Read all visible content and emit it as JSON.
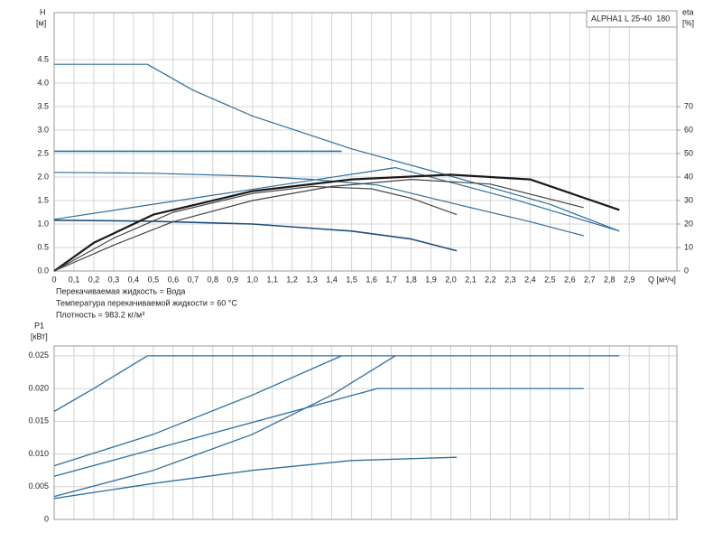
{
  "chart_data": [
    {
      "type": "line",
      "model_label": "ALPHA1 L 25-40  180",
      "y_label": "H",
      "y_unit": "[м]",
      "y2_label": "eta",
      "y2_unit": "[%]",
      "x_label": "Q [м³/ч]",
      "notes": [
        "Перекачиваемая жидкость = Вода",
        "Температура перекачиваемой жидкости = 60 °C",
        "Плотность = 983.2 кг/м³"
      ],
      "xlim": [
        0,
        3.14
      ],
      "xticks": [
        0,
        {
          "value": 0.1,
          "label": "0,1"
        },
        {
          "value": 0.2,
          "label": "0,2"
        },
        {
          "value": 0.3,
          "label": "0,3"
        },
        {
          "value": 0.4,
          "label": "0,4"
        },
        {
          "value": 0.5,
          "label": "0,5"
        },
        {
          "value": 0.6,
          "label": "0,6"
        },
        {
          "value": 0.7,
          "label": "0,7"
        },
        {
          "value": 0.8,
          "label": "0,8"
        },
        {
          "value": 0.9,
          "label": "0,9"
        },
        {
          "value": 1.0,
          "label": "1,0"
        },
        {
          "value": 1.1,
          "label": "1,1"
        },
        {
          "value": 1.2,
          "label": "1,2"
        },
        {
          "value": 1.3,
          "label": "1,3"
        },
        {
          "value": 1.4,
          "label": "1,4"
        },
        {
          "value": 1.5,
          "label": "1,5"
        },
        {
          "value": 1.6,
          "label": "1,6"
        },
        {
          "value": 1.7,
          "label": "1,7"
        },
        {
          "value": 1.8,
          "label": "1,8"
        },
        {
          "value": 1.9,
          "label": "1,9"
        },
        {
          "value": 2.0,
          "label": "2,0"
        },
        {
          "value": 2.1,
          "label": "2,1"
        },
        {
          "value": 2.2,
          "label": "2,2"
        },
        {
          "value": 2.3,
          "label": "2,3"
        },
        {
          "value": 2.4,
          "label": "2,4"
        },
        {
          "value": 2.5,
          "label": "2,5"
        },
        {
          "value": 2.6,
          "label": "2,6"
        },
        {
          "value": 2.7,
          "label": "2,7"
        },
        {
          "value": 2.8,
          "label": "2,8"
        },
        {
          "value": 2.9,
          "label": "2,9"
        }
      ],
      "xtick_labels": true,
      "ylim": [
        0,
        5.5
      ],
      "yticks": [
        {
          "value": 0,
          "label": "0.0"
        },
        0.5,
        {
          "value": 1,
          "label": "1.0"
        },
        1.5,
        {
          "value": 2,
          "label": "2.0"
        },
        2.5,
        {
          "value": 3,
          "label": "3.0"
        },
        3.5,
        {
          "value": 4,
          "label": "4.0"
        },
        4.5
      ],
      "y2lim": [
        0,
        110
      ],
      "y2ticks": [
        0,
        10,
        20,
        30,
        40,
        50,
        60,
        70
      ],
      "grid": true,
      "series": [
        {
          "color": "#2f6e9b",
          "width": 1.2,
          "x": [
            0,
            0.47,
            0.7,
            1.0,
            1.5,
            2.0,
            2.5,
            2.85
          ],
          "values": [
            4.4,
            4.4,
            3.85,
            3.3,
            2.6,
            2.02,
            1.42,
            0.85
          ]
        },
        {
          "color": "#2f6e9b",
          "width": 1.6,
          "x": [
            0,
            1.45
          ],
          "values": [
            2.55,
            2.55
          ]
        },
        {
          "color": "#2f6e9b",
          "width": 1.2,
          "x": [
            0,
            1.72,
            2.3,
            2.85
          ],
          "values": [
            1.1,
            2.2,
            1.55,
            0.85
          ]
        },
        {
          "color": "#2f6e9b",
          "width": 1.2,
          "x": [
            0,
            0.5,
            1.0,
            1.3,
            1.63,
            2.0,
            2.4,
            2.67
          ],
          "values": [
            2.1,
            2.08,
            2.02,
            1.95,
            1.83,
            1.45,
            1.05,
            0.75
          ]
        },
        {
          "color": "#1f4f7a",
          "width": 1.6,
          "x": [
            0,
            0.5,
            1.0,
            1.5,
            1.8,
            2.03
          ],
          "values": [
            1.08,
            1.06,
            1.0,
            0.85,
            0.68,
            0.43
          ]
        },
        {
          "color": "#1a1a1a",
          "width": 2.2,
          "axis": "y2",
          "x": [
            0,
            0.2,
            0.5,
            1.0,
            1.5,
            2.0,
            2.4,
            2.85
          ],
          "values": [
            0,
            12,
            24,
            34,
            39,
            41,
            39,
            26
          ]
        },
        {
          "color": "#444444",
          "width": 1.2,
          "axis": "y2",
          "x": [
            0,
            0.3,
            0.6,
            1.0,
            1.3,
            1.6,
            1.8,
            2.03
          ],
          "values": [
            0,
            14,
            25,
            33,
            36,
            35,
            31,
            24
          ]
        },
        {
          "color": "#444444",
          "width": 1.2,
          "axis": "y2",
          "x": [
            0,
            0.3,
            0.6,
            1.0,
            1.4,
            1.8,
            2.2,
            2.67
          ],
          "values": [
            0,
            11,
            21,
            30,
            36,
            39,
            37,
            27
          ]
        }
      ]
    },
    {
      "type": "line",
      "y_label": "P1",
      "y_unit": "[кВт]",
      "xlim": [
        0,
        3.14
      ],
      "xticks": [
        0,
        0.1,
        0.2,
        0.3,
        0.4,
        0.5,
        0.6,
        0.7,
        0.8,
        0.9,
        1.0,
        1.1,
        1.2,
        1.3,
        1.4,
        1.5,
        1.6,
        1.7,
        1.8,
        1.9,
        2.0,
        2.1,
        2.2,
        2.3,
        2.4,
        2.5,
        2.6,
        2.7,
        2.8,
        2.9,
        3.0,
        3.1
      ],
      "xtick_labels": false,
      "ylim": [
        0,
        0.0265
      ],
      "yticks": [
        0,
        0.005,
        {
          "value": 0.01,
          "label": "0.010"
        },
        0.015,
        {
          "value": 0.02,
          "label": "0.020"
        },
        0.025
      ],
      "grid": true,
      "series": [
        {
          "color": "#2f6e9b",
          "width": 1.3,
          "x": [
            0,
            0.2,
            0.47,
            2.85
          ],
          "values": [
            0.0165,
            0.02,
            0.025,
            0.025
          ]
        },
        {
          "color": "#2f6e9b",
          "width": 1.3,
          "x": [
            0,
            0.5,
            1.0,
            1.45
          ],
          "values": [
            0.0082,
            0.013,
            0.019,
            0.025
          ]
        },
        {
          "color": "#2f6e9b",
          "width": 1.3,
          "x": [
            0,
            0.5,
            1.0,
            1.4,
            1.72
          ],
          "values": [
            0.0035,
            0.0075,
            0.013,
            0.019,
            0.025
          ]
        },
        {
          "color": "#2f6e9b",
          "width": 1.3,
          "x": [
            0,
            1.63,
            2.67
          ],
          "values": [
            0.0066,
            0.02,
            0.02
          ]
        },
        {
          "color": "#2f6e9b",
          "width": 1.3,
          "x": [
            0,
            0.5,
            1.0,
            1.5,
            2.03
          ],
          "values": [
            0.0032,
            0.0055,
            0.0075,
            0.009,
            0.0095
          ]
        }
      ]
    }
  ]
}
